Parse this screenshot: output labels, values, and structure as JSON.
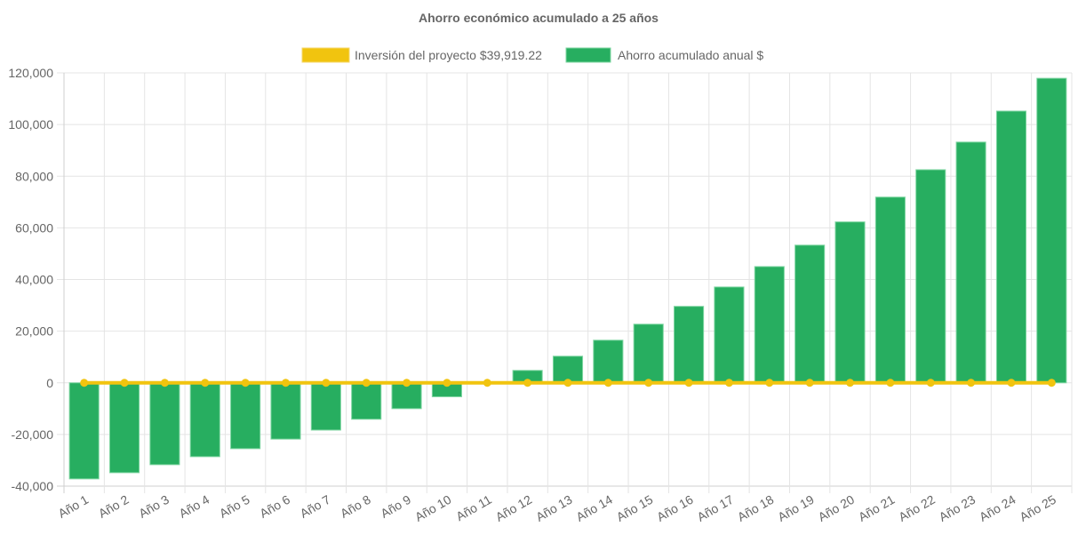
{
  "chart_data": {
    "type": "bar",
    "title": "Ahorro económico acumulado a 25 años",
    "xlabel": "",
    "ylabel": "",
    "ylim": [
      -40000,
      120000
    ],
    "yticks": [
      -40000,
      -20000,
      0,
      20000,
      40000,
      60000,
      80000,
      100000,
      120000
    ],
    "ytick_labels": [
      "-40,000",
      "-20,000",
      "0",
      "20,000",
      "40,000",
      "60,000",
      "80,000",
      "100,000",
      "120,000"
    ],
    "grid": true,
    "legend_position": "top-center",
    "categories": [
      "Año 1",
      "Año 2",
      "Año 3",
      "Año 4",
      "Año 5",
      "Año 6",
      "Año 7",
      "Año 8",
      "Año 9",
      "Año 10",
      "Año 11",
      "Año 12",
      "Año 13",
      "Año 14",
      "Año 15",
      "Año 16",
      "Año 17",
      "Año 18",
      "Año 19",
      "Año 20",
      "Año 21",
      "Año 22",
      "Año 23",
      "Año 24",
      "Año 25"
    ],
    "series": [
      {
        "name": "Inversión del proyecto $39,919.22",
        "type": "line",
        "color": "#f1c40f",
        "values": [
          0,
          0,
          0,
          0,
          0,
          0,
          0,
          0,
          0,
          0,
          0,
          0,
          0,
          0,
          0,
          0,
          0,
          0,
          0,
          0,
          0,
          0,
          0,
          0,
          0
        ]
      },
      {
        "name": "Ahorro acumulado anual $",
        "type": "bar",
        "color": "#27ae60",
        "values": [
          -37200,
          -34800,
          -31700,
          -28600,
          -25500,
          -21800,
          -18300,
          -14100,
          -10000,
          -5400,
          0,
          4800,
          10300,
          16500,
          22700,
          29600,
          37100,
          45000,
          53300,
          62300,
          71900,
          82500,
          93200,
          105200,
          117900
        ]
      }
    ]
  }
}
